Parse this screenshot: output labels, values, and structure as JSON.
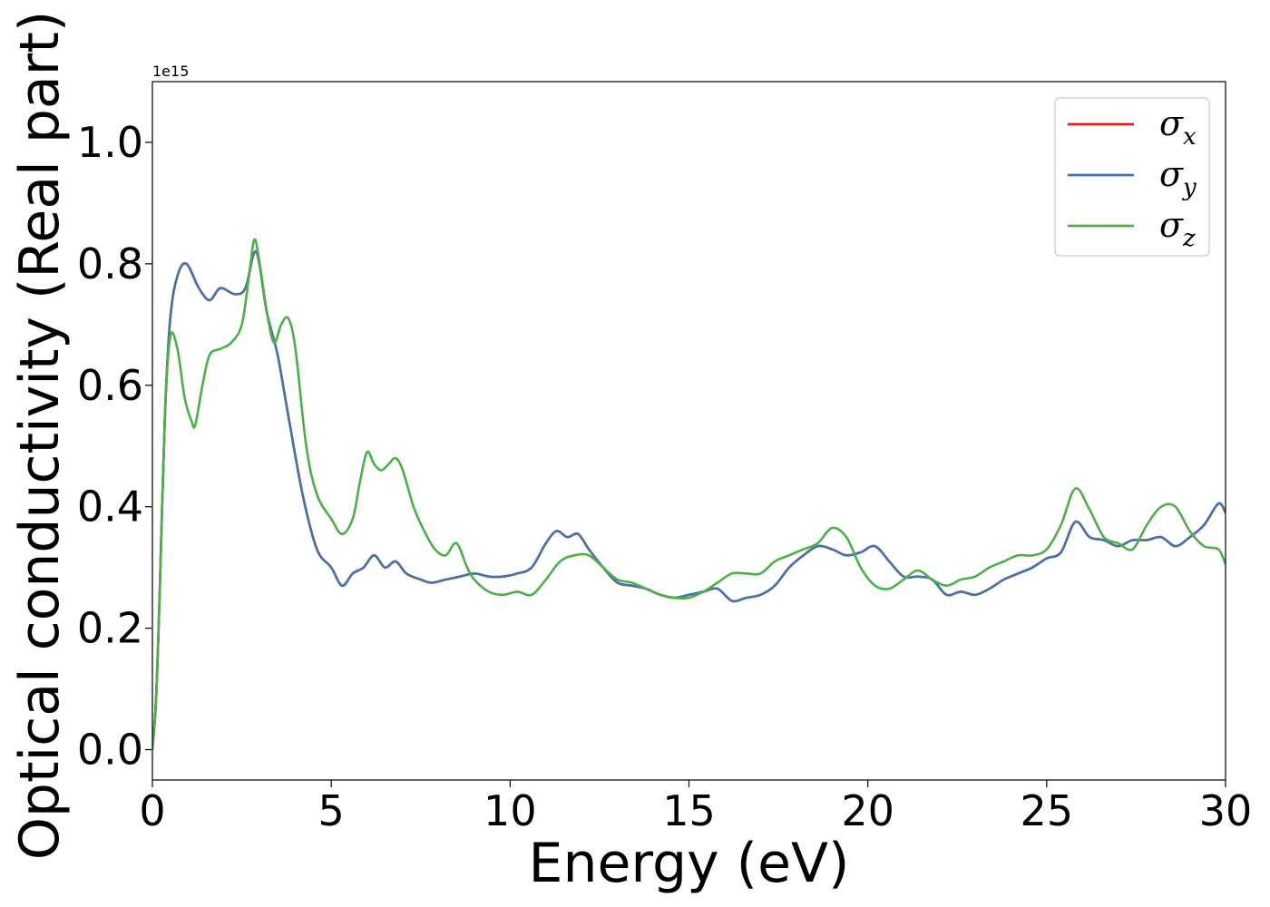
{
  "chart_data": {
    "type": "line",
    "xlabel": "Energy (eV)",
    "ylabel": "Optical conductivity (Real part)",
    "y_offset_label": "1e15",
    "xlim": [
      0,
      30
    ],
    "ylim": [
      -0.05,
      1.1
    ],
    "x_ticks": [
      0,
      5,
      10,
      15,
      20,
      25,
      30
    ],
    "x_tick_labels": [
      "0",
      "5",
      "10",
      "15",
      "20",
      "25",
      "30"
    ],
    "y_ticks": [
      0.0,
      0.2,
      0.4,
      0.6,
      0.8,
      1.0
    ],
    "y_tick_labels": [
      "0.0",
      "0.2",
      "0.4",
      "0.6",
      "0.8",
      "1.0"
    ],
    "grid": false,
    "legend_position": "top-right",
    "series": [
      {
        "name": "σ_x",
        "label_base": "σ",
        "label_sub": "x",
        "color": "#e41a1c",
        "x": [
          0,
          0.1,
          0.2,
          0.35,
          0.5,
          0.7,
          0.95,
          1.3,
          1.6,
          1.9,
          2.3,
          2.6,
          2.9,
          3.2,
          3.5,
          3.8,
          4.2,
          4.6,
          5.0,
          5.3,
          5.6,
          5.9,
          6.2,
          6.5,
          6.8,
          7.1,
          7.5,
          7.8,
          8.2,
          8.6,
          9.0,
          9.4,
          9.8,
          10.2,
          10.6,
          11.0,
          11.3,
          11.6,
          11.9,
          12.2,
          12.6,
          13.0,
          13.4,
          13.8,
          14.2,
          14.6,
          15.0,
          15.4,
          15.8,
          16.2,
          16.6,
          17.0,
          17.4,
          17.8,
          18.2,
          18.6,
          19.0,
          19.4,
          19.8,
          20.2,
          20.6,
          21.0,
          21.4,
          21.8,
          22.2,
          22.6,
          23.0,
          23.4,
          23.8,
          24.2,
          24.6,
          25.0,
          25.4,
          25.8,
          26.2,
          26.6,
          27.0,
          27.4,
          27.8,
          28.2,
          28.6,
          29.0,
          29.4,
          29.8,
          30.0
        ],
        "y": [
          0.0,
          0.08,
          0.25,
          0.55,
          0.71,
          0.78,
          0.8,
          0.76,
          0.74,
          0.76,
          0.75,
          0.76,
          0.82,
          0.72,
          0.65,
          0.55,
          0.42,
          0.33,
          0.3,
          0.27,
          0.29,
          0.3,
          0.32,
          0.3,
          0.31,
          0.29,
          0.28,
          0.275,
          0.28,
          0.285,
          0.29,
          0.285,
          0.285,
          0.29,
          0.3,
          0.34,
          0.36,
          0.35,
          0.355,
          0.33,
          0.3,
          0.275,
          0.27,
          0.265,
          0.255,
          0.25,
          0.255,
          0.26,
          0.265,
          0.245,
          0.25,
          0.255,
          0.27,
          0.3,
          0.32,
          0.335,
          0.33,
          0.32,
          0.325,
          0.335,
          0.31,
          0.285,
          0.285,
          0.28,
          0.255,
          0.26,
          0.255,
          0.265,
          0.28,
          0.29,
          0.3,
          0.315,
          0.325,
          0.375,
          0.35,
          0.345,
          0.335,
          0.345,
          0.345,
          0.35,
          0.335,
          0.35,
          0.37,
          0.405,
          0.39
        ]
      },
      {
        "name": "σ_y",
        "label_base": "σ",
        "label_sub": "y",
        "color": "#4574ad",
        "x": [
          0,
          0.1,
          0.2,
          0.35,
          0.5,
          0.7,
          0.95,
          1.3,
          1.6,
          1.9,
          2.3,
          2.6,
          2.9,
          3.2,
          3.5,
          3.8,
          4.2,
          4.6,
          5.0,
          5.3,
          5.6,
          5.9,
          6.2,
          6.5,
          6.8,
          7.1,
          7.5,
          7.8,
          8.2,
          8.6,
          9.0,
          9.4,
          9.8,
          10.2,
          10.6,
          11.0,
          11.3,
          11.6,
          11.9,
          12.2,
          12.6,
          13.0,
          13.4,
          13.8,
          14.2,
          14.6,
          15.0,
          15.4,
          15.8,
          16.2,
          16.6,
          17.0,
          17.4,
          17.8,
          18.2,
          18.6,
          19.0,
          19.4,
          19.8,
          20.2,
          20.6,
          21.0,
          21.4,
          21.8,
          22.2,
          22.6,
          23.0,
          23.4,
          23.8,
          24.2,
          24.6,
          25.0,
          25.4,
          25.8,
          26.2,
          26.6,
          27.0,
          27.4,
          27.8,
          28.2,
          28.6,
          29.0,
          29.4,
          29.8,
          30.0
        ],
        "y": [
          0.0,
          0.08,
          0.25,
          0.55,
          0.71,
          0.78,
          0.8,
          0.76,
          0.74,
          0.76,
          0.75,
          0.76,
          0.82,
          0.72,
          0.65,
          0.55,
          0.42,
          0.33,
          0.3,
          0.27,
          0.29,
          0.3,
          0.32,
          0.3,
          0.31,
          0.29,
          0.28,
          0.275,
          0.28,
          0.285,
          0.29,
          0.285,
          0.285,
          0.29,
          0.3,
          0.34,
          0.36,
          0.35,
          0.355,
          0.33,
          0.3,
          0.275,
          0.27,
          0.265,
          0.255,
          0.25,
          0.255,
          0.26,
          0.265,
          0.245,
          0.25,
          0.255,
          0.27,
          0.3,
          0.32,
          0.335,
          0.33,
          0.32,
          0.325,
          0.335,
          0.31,
          0.285,
          0.285,
          0.28,
          0.255,
          0.26,
          0.255,
          0.265,
          0.28,
          0.29,
          0.3,
          0.315,
          0.325,
          0.375,
          0.35,
          0.345,
          0.335,
          0.345,
          0.345,
          0.35,
          0.335,
          0.35,
          0.37,
          0.405,
          0.39
        ]
      },
      {
        "name": "σ_z",
        "label_base": "σ",
        "label_sub": "z",
        "color": "#4daf4a",
        "x": [
          0,
          0.1,
          0.2,
          0.35,
          0.5,
          0.7,
          0.9,
          1.1,
          1.2,
          1.4,
          1.6,
          1.9,
          2.2,
          2.5,
          2.7,
          2.85,
          3.0,
          3.2,
          3.4,
          3.6,
          3.8,
          4.0,
          4.3,
          4.6,
          5.0,
          5.3,
          5.6,
          5.8,
          6.0,
          6.2,
          6.4,
          6.6,
          6.8,
          7.0,
          7.3,
          7.6,
          7.9,
          8.2,
          8.5,
          8.8,
          9.0,
          9.4,
          9.8,
          10.2,
          10.6,
          11.0,
          11.4,
          11.8,
          12.2,
          12.6,
          13.0,
          13.4,
          13.8,
          14.2,
          14.6,
          15.0,
          15.4,
          15.8,
          16.2,
          16.6,
          17.0,
          17.4,
          17.8,
          18.2,
          18.6,
          19.0,
          19.4,
          19.8,
          20.2,
          20.6,
          21.0,
          21.4,
          21.8,
          22.2,
          22.6,
          23.0,
          23.4,
          23.8,
          24.2,
          24.6,
          25.0,
          25.4,
          25.8,
          26.2,
          26.6,
          27.0,
          27.4,
          27.8,
          28.2,
          28.6,
          29.0,
          29.4,
          29.8,
          30.0
        ],
        "y": [
          0.0,
          0.08,
          0.25,
          0.55,
          0.68,
          0.66,
          0.58,
          0.54,
          0.535,
          0.6,
          0.65,
          0.66,
          0.67,
          0.7,
          0.78,
          0.84,
          0.8,
          0.72,
          0.67,
          0.7,
          0.71,
          0.66,
          0.5,
          0.42,
          0.38,
          0.355,
          0.38,
          0.44,
          0.49,
          0.47,
          0.46,
          0.47,
          0.48,
          0.46,
          0.4,
          0.36,
          0.33,
          0.32,
          0.34,
          0.3,
          0.28,
          0.26,
          0.255,
          0.26,
          0.255,
          0.28,
          0.31,
          0.32,
          0.32,
          0.3,
          0.28,
          0.275,
          0.265,
          0.255,
          0.25,
          0.25,
          0.26,
          0.275,
          0.29,
          0.29,
          0.29,
          0.31,
          0.32,
          0.33,
          0.34,
          0.365,
          0.35,
          0.3,
          0.27,
          0.265,
          0.28,
          0.295,
          0.28,
          0.27,
          0.28,
          0.285,
          0.3,
          0.31,
          0.32,
          0.32,
          0.33,
          0.37,
          0.43,
          0.395,
          0.35,
          0.34,
          0.33,
          0.37,
          0.4,
          0.4,
          0.36,
          0.335,
          0.33,
          0.305
        ]
      }
    ]
  }
}
